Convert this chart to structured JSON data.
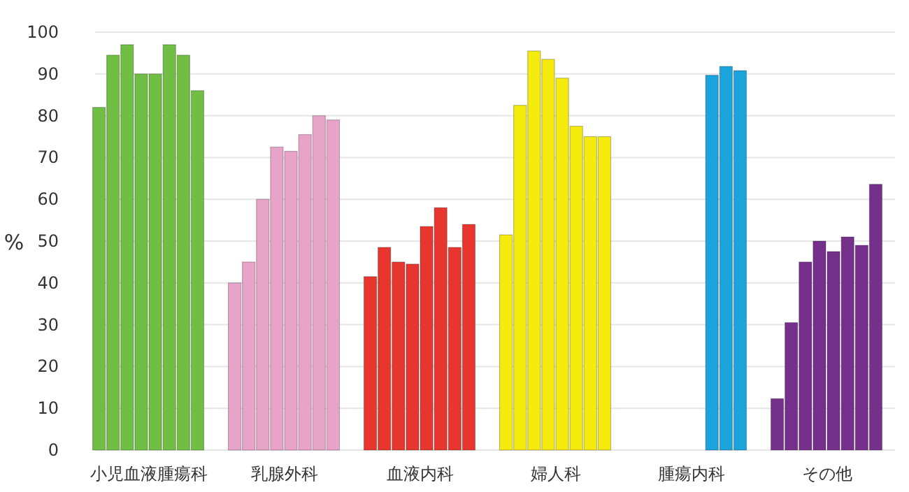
{
  "chart_data": {
    "type": "bar",
    "ylabel": "%",
    "categories": [
      "小児血液腫瘍科",
      "乳腺外科",
      "血液内科",
      "婦人科",
      "腫瘍内科",
      "その他"
    ],
    "ylim": [
      0,
      100
    ],
    "yticks": [
      0,
      10,
      20,
      30,
      40,
      50,
      60,
      70,
      80,
      90,
      100
    ],
    "grid": "y",
    "series": [
      {
        "colors": [
          "#70bf44",
          "#e8a3c8",
          "#e8362f",
          "#f5eb0c",
          null,
          "#75308c"
        ],
        "values": [
          82,
          40,
          41.5,
          51.5,
          null,
          12.3
        ]
      },
      {
        "colors": [
          "#70bf44",
          "#e8a3c8",
          "#e8362f",
          "#f5eb0c",
          null,
          "#75308c"
        ],
        "values": [
          94.5,
          45,
          48.5,
          82.5,
          null,
          30.5
        ]
      },
      {
        "colors": [
          "#70bf44",
          "#e8a3c8",
          "#e8362f",
          "#f5eb0c",
          null,
          "#75308c"
        ],
        "values": [
          97,
          60,
          45,
          95.5,
          null,
          45
        ]
      },
      {
        "colors": [
          "#70bf44",
          "#e8a3c8",
          "#e8362f",
          "#f5eb0c",
          null,
          "#75308c"
        ],
        "values": [
          90,
          72.5,
          44.5,
          93.5,
          null,
          50
        ]
      },
      {
        "colors": [
          "#70bf44",
          "#e8a3c8",
          "#e8362f",
          "#f5eb0c",
          null,
          "#75308c"
        ],
        "values": [
          90,
          71.5,
          53.5,
          89,
          null,
          47.5
        ]
      },
      {
        "colors": [
          "#70bf44",
          "#e8a3c8",
          "#e8362f",
          "#f5eb0c",
          "#1ba3dd",
          "#75308c"
        ],
        "values": [
          97,
          75.5,
          58,
          77.5,
          89.7,
          51
        ]
      },
      {
        "colors": [
          "#70bf44",
          "#e8a3c8",
          "#e8362f",
          "#f5eb0c",
          "#1ba3dd",
          "#75308c"
        ],
        "values": [
          94.5,
          80,
          48.5,
          75,
          91.8,
          49
        ]
      },
      {
        "colors": [
          "#70bf44",
          "#e8a3c8",
          "#e8362f",
          "#f5eb0c",
          "#1ba3dd",
          "#75308c"
        ],
        "values": [
          86,
          79,
          54,
          75,
          90.8,
          63.6
        ]
      }
    ]
  }
}
